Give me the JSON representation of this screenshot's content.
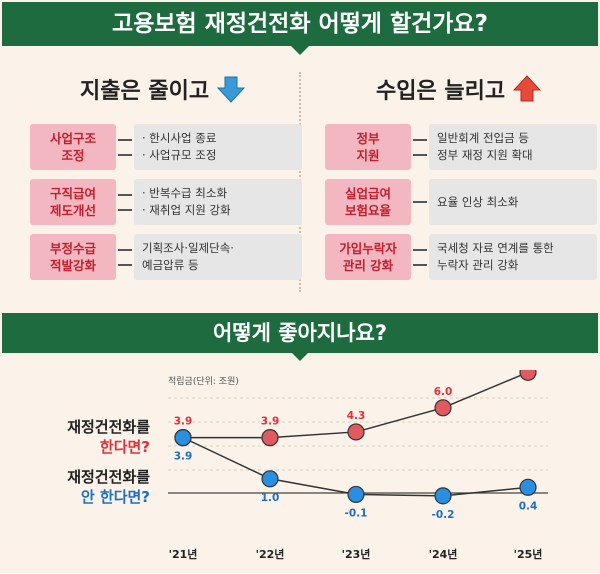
{
  "title": "고용보험 재정건전화 어떻게 할건가요?",
  "spending": {
    "heading": "지출은 줄이고",
    "icon": "down-arrow-icon",
    "icon_color": "#3a9ad9",
    "items": [
      {
        "tag": [
          "사업구조",
          "조정"
        ],
        "details": [
          "· 한시사업 종료",
          "· 사업규모 조정"
        ]
      },
      {
        "tag": [
          "구직급여",
          "제도개선"
        ],
        "details": [
          "· 반복수급 최소화",
          "· 재취업 지원 강화"
        ]
      },
      {
        "tag": [
          "부정수급",
          "적발강화"
        ],
        "details": [
          "기획조사·일제단속·",
          "예금압류 등"
        ]
      }
    ]
  },
  "income": {
    "heading": "수입은 늘리고",
    "icon": "up-arrow-icon",
    "icon_color": "#e84a3a",
    "items": [
      {
        "tag": [
          "정부",
          "지원"
        ],
        "details": [
          "일반회계 전입금 등",
          "정부 재정 지원 확대"
        ]
      },
      {
        "tag": [
          "실업급여",
          "보험요율"
        ],
        "details": [
          "요율 인상 최소화"
        ]
      },
      {
        "tag": [
          "가입누락자",
          "관리 강화"
        ],
        "details": [
          "국세청 자료 연계를 통한",
          "누락자 관리 강화"
        ]
      }
    ]
  },
  "effect_title": "어떻게 좋아지나요?",
  "chart_data": {
    "type": "line",
    "unit_label": "적립금(단위: 조원)",
    "categories": [
      "'21년",
      "'22년",
      "'23년",
      "'24년",
      "'25년"
    ],
    "series": [
      {
        "name": "재정건전화를 한다면?",
        "name_lines": [
          "재정건전화를",
          "한다면?"
        ],
        "color": "#e05a5f",
        "label_color": "#e0303a",
        "values": [
          3.9,
          3.9,
          4.3,
          6.0,
          8.5
        ]
      },
      {
        "name": "재정건전화를 안 한다면?",
        "name_lines": [
          "재정건전화를",
          "안 한다면?"
        ],
        "color": "#2a8fe0",
        "label_color": "#1f6fc0",
        "values": [
          3.9,
          1.0,
          -0.1,
          -0.2,
          0.4
        ]
      }
    ]
  }
}
